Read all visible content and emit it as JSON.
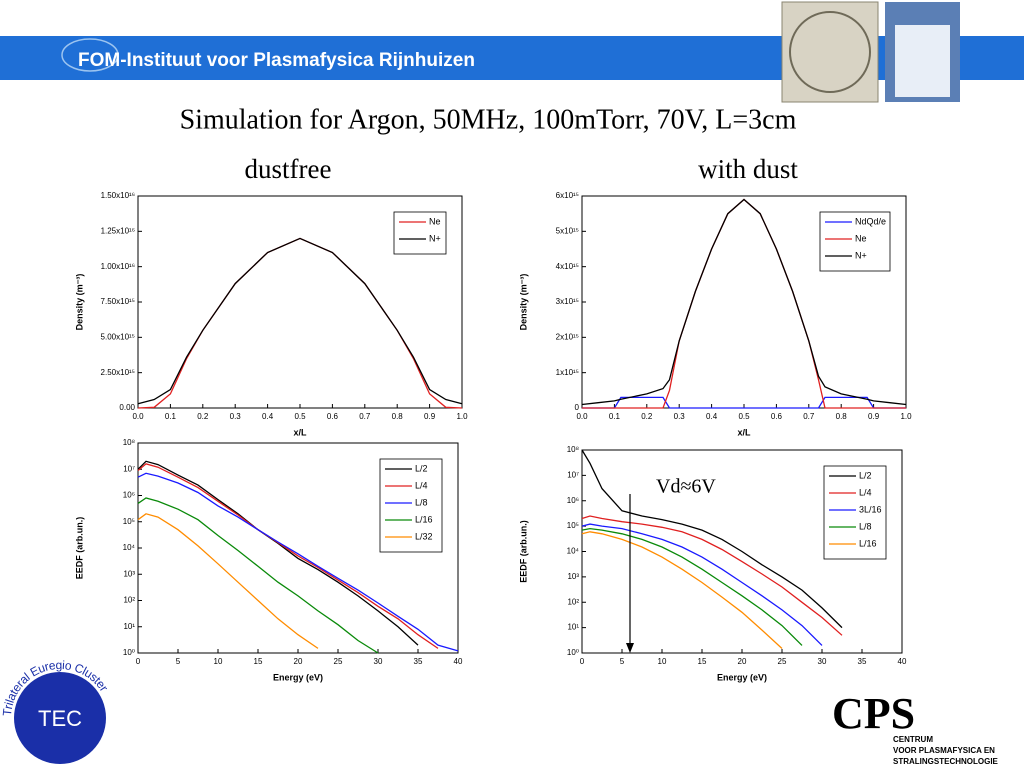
{
  "header": {
    "institute": "FOM-Instituut voor Plasmafysica Rijnhuizen"
  },
  "title": "Simulation for Argon, 50MHz, 100mTorr, 70V, L=3cm",
  "subtitles": [
    "dustfree",
    "with dust"
  ],
  "logos": {
    "tec": "TEC",
    "tec_ring": "Trilateral Euregio Cluster",
    "cps": "CPS",
    "cps_lines": [
      "CENTRUM",
      "VOOR PLASMAFYSICA EN",
      "STRALINGSTECHNOLOGIE"
    ]
  },
  "chart_data": [
    {
      "type": "line",
      "xlabel": "x/L",
      "ylabel": "Density (m⁻³)",
      "x": [
        0,
        0.05,
        0.1,
        0.15,
        0.2,
        0.3,
        0.4,
        0.5,
        0.6,
        0.7,
        0.8,
        0.85,
        0.9,
        0.95,
        1.0
      ],
      "series": [
        {
          "name": "Ne",
          "color": "#e02020",
          "values": [
            0,
            50000000000000.0,
            1000000000000000.0,
            3500000000000000.0,
            5500000000000000.0,
            8800000000000000.0,
            1.1e+16,
            1.2e+16,
            1.1e+16,
            8800000000000000.0,
            5500000000000000.0,
            3500000000000000.0,
            1000000000000000.0,
            50000000000000.0,
            0
          ]
        },
        {
          "name": "N+",
          "color": "#000000",
          "values": [
            300000000000000.0,
            600000000000000.0,
            1300000000000000.0,
            3600000000000000.0,
            5500000000000000.0,
            8800000000000000.0,
            1.1e+16,
            1.2e+16,
            1.1e+16,
            8800000000000000.0,
            5500000000000000.0,
            3600000000000000.0,
            1300000000000000.0,
            600000000000000.0,
            300000000000000.0
          ]
        }
      ],
      "xlim": [
        0,
        1.0
      ],
      "xticks": [
        {
          "value": 0,
          "label": "0.0"
        },
        0.1,
        0.2,
        0.3,
        0.4,
        0.5,
        0.6,
        0.7,
        0.8,
        0.9,
        {
          "value": 1.0,
          "label": "1.0"
        }
      ],
      "ylim": [
        0,
        1.5e+16
      ],
      "yticks": [
        {
          "value": 0,
          "label": "0.00"
        },
        {
          "value": 2500000000000000.0,
          "label": "2.50x10¹⁵"
        },
        {
          "value": 5000000000000000.0,
          "label": "5.00x10¹⁵"
        },
        {
          "value": 7500000000000000.0,
          "label": "7.50x10¹⁵"
        },
        {
          "value": 1e+16,
          "label": "1.00x10¹⁶"
        },
        {
          "value": 1.25e+16,
          "label": "1.25x10¹⁶"
        },
        {
          "value": 1.5e+16,
          "label": "1.50x10¹⁶"
        }
      ],
      "legend": "upper right"
    },
    {
      "type": "line",
      "xlabel": "x/L",
      "ylabel": "Density (m⁻³)",
      "x": [
        0,
        0.05,
        0.1,
        0.12,
        0.2,
        0.25,
        0.27,
        0.3,
        0.35,
        0.4,
        0.45,
        0.5,
        0.55,
        0.6,
        0.65,
        0.7,
        0.73,
        0.75,
        0.8,
        0.88,
        0.9,
        0.95,
        1.0
      ],
      "series": [
        {
          "name": "NdQd/e",
          "color": "#1a1aff",
          "values": [
            0,
            0,
            0,
            300000000000000.0,
            300000000000000.0,
            300000000000000.0,
            0,
            0,
            0,
            0,
            0,
            0,
            0,
            0,
            0,
            0,
            0,
            300000000000000.0,
            300000000000000.0,
            300000000000000.0,
            0,
            0,
            0
          ]
        },
        {
          "name": "Ne",
          "color": "#e02020",
          "values": [
            0,
            0,
            0,
            0,
            0,
            0,
            500000000000000.0,
            1900000000000000.0,
            3300000000000000.0,
            4500000000000000.0,
            5500000000000000.0,
            5900000000000000.0,
            5500000000000000.0,
            4500000000000000.0,
            3300000000000000.0,
            1900000000000000.0,
            800000000000000.0,
            0,
            0,
            0,
            0,
            0,
            0
          ]
        },
        {
          "name": "N+",
          "color": "#000000",
          "values": [
            100000000000000.0,
            150000000000000.0,
            200000000000000.0,
            250000000000000.0,
            400000000000000.0,
            550000000000000.0,
            800000000000000.0,
            1900000000000000.0,
            3300000000000000.0,
            4500000000000000.0,
            5500000000000000.0,
            5900000000000000.0,
            5500000000000000.0,
            4500000000000000.0,
            3300000000000000.0,
            1900000000000000.0,
            900000000000000.0,
            600000000000000.0,
            400000000000000.0,
            250000000000000.0,
            200000000000000.0,
            150000000000000.0,
            100000000000000.0
          ]
        }
      ],
      "xlim": [
        0,
        1.0
      ],
      "xticks": [
        {
          "value": 0,
          "label": "0.0"
        },
        0.1,
        0.2,
        0.3,
        0.4,
        0.5,
        0.6,
        0.7,
        0.8,
        0.9,
        {
          "value": 1.0,
          "label": "1.0"
        }
      ],
      "ylim": [
        0,
        6000000000000000.0
      ],
      "yticks": [
        0,
        {
          "value": 1000000000000000.0,
          "label": "1x10¹⁵"
        },
        {
          "value": 2000000000000000.0,
          "label": "2x10¹⁵"
        },
        {
          "value": 3000000000000000.0,
          "label": "3x10¹⁵"
        },
        {
          "value": 4000000000000000.0,
          "label": "4x10¹⁵"
        },
        {
          "value": 5000000000000000.0,
          "label": "5x10¹⁵"
        },
        {
          "value": 6000000000000000.0,
          "label": "6x10¹⁵"
        }
      ],
      "legend": "upper right"
    },
    {
      "type": "line",
      "xlabel": "Energy (eV)",
      "ylabel": "EEDF (arb.un.)",
      "log_y": true,
      "x": [
        0,
        1,
        2.5,
        5,
        7.5,
        10,
        12.5,
        15,
        17.5,
        20,
        22.5,
        25,
        27.5,
        30,
        32.5,
        35,
        37.5,
        40
      ],
      "series": [
        {
          "name": "L/2",
          "color": "#000000",
          "values": [
            10000000.0,
            20000000.0,
            15000000.0,
            6000000.0,
            2500000.0,
            700000.0,
            200000.0,
            50000.0,
            15000.0,
            4000.0,
            1500.0,
            500,
            150,
            40,
            10,
            2,
            null,
            null
          ]
        },
        {
          "name": "L/4",
          "color": "#e02020",
          "values": [
            9000000.0,
            16000000.0,
            12000000.0,
            5000000.0,
            2000000.0,
            600000.0,
            180000.0,
            50000.0,
            16000.0,
            5000.0,
            1800.0,
            600,
            200,
            60,
            20,
            5,
            1.5,
            null
          ]
        },
        {
          "name": "L/8",
          "color": "#1a1aff",
          "values": [
            5000000.0,
            7000000.0,
            5500000.0,
            3000000.0,
            1300000.0,
            400000.0,
            150000.0,
            50000.0,
            17000.0,
            6000.0,
            2000.0,
            700,
            250,
            80,
            25,
            8,
            2,
            1.2
          ]
        },
        {
          "name": "L/16",
          "color": "#0a8a0a",
          "values": [
            500000.0,
            800000.0,
            600000.0,
            300000.0,
            120000.0,
            30000.0,
            8000.0,
            2000.0,
            500,
            150,
            40,
            12,
            3,
            1,
            null,
            null,
            null,
            null
          ]
        },
        {
          "name": "L/32",
          "color": "#ff8c00",
          "values": [
            120000.0,
            200000.0,
            150000.0,
            50000.0,
            12000.0,
            2500.0,
            500,
            100,
            20,
            5,
            1.5,
            null,
            null,
            null,
            null,
            null,
            null,
            null
          ]
        }
      ],
      "xlim": [
        0,
        40
      ],
      "xticks": [
        0,
        5,
        10,
        15,
        20,
        25,
        30,
        35,
        40
      ],
      "ylim": [
        1,
        100000000.0
      ],
      "yticks": [
        {
          "value": 1,
          "label": "10⁰"
        },
        {
          "value": 10,
          "label": "10¹"
        },
        {
          "value": 100,
          "label": "10²"
        },
        {
          "value": 1000,
          "label": "10³"
        },
        {
          "value": 10000.0,
          "label": "10⁴"
        },
        {
          "value": 100000.0,
          "label": "10⁵"
        },
        {
          "value": 1000000.0,
          "label": "10⁶"
        },
        {
          "value": 10000000.0,
          "label": "10⁷"
        },
        {
          "value": 100000000.0,
          "label": "10⁸"
        }
      ],
      "legend": "upper right"
    },
    {
      "type": "line",
      "xlabel": "Energy (eV)",
      "ylabel": "EEDF (arb.un.)",
      "log_y": true,
      "x": [
        0,
        1,
        2.5,
        5,
        7.5,
        10,
        12.5,
        15,
        17.5,
        20,
        22.5,
        25,
        27.5,
        30,
        32.5,
        35,
        37.5,
        40
      ],
      "series": [
        {
          "name": "L/2",
          "color": "#000000",
          "values": [
            100000000.0,
            30000000.0,
            3000000.0,
            400000.0,
            250000.0,
            180000.0,
            120000.0,
            70000.0,
            30000.0,
            10000.0,
            3000.0,
            1000.0,
            300,
            60,
            10,
            null,
            null,
            null
          ]
        },
        {
          "name": "L/4",
          "color": "#e02020",
          "values": [
            200000.0,
            250000.0,
            200000.0,
            150000.0,
            120000.0,
            90000.0,
            60000.0,
            30000.0,
            12000.0,
            4000.0,
            1300.0,
            400,
            100,
            25,
            5,
            null,
            null,
            null
          ]
        },
        {
          "name": "3L/16",
          "color": "#1a1aff",
          "values": [
            100000.0,
            120000.0,
            100000.0,
            80000.0,
            50000.0,
            30000.0,
            15000.0,
            6000.0,
            2000.0,
            600,
            180,
            50,
            12,
            2,
            null,
            null,
            null,
            null
          ]
        },
        {
          "name": "L/8",
          "color": "#0a8a0a",
          "values": [
            70000.0,
            80000.0,
            70000.0,
            50000.0,
            30000.0,
            15000.0,
            6000.0,
            2000.0,
            600,
            180,
            50,
            12,
            2,
            null,
            null,
            null,
            null,
            null
          ]
        },
        {
          "name": "L/16",
          "color": "#ff8c00",
          "values": [
            50000.0,
            60000.0,
            50000.0,
            30000.0,
            15000.0,
            6000.0,
            2000.0,
            600,
            160,
            40,
            8,
            1.5,
            null,
            null,
            null,
            null,
            null,
            null
          ]
        }
      ],
      "xlim": [
        0,
        40
      ],
      "xticks": [
        0,
        5,
        10,
        15,
        20,
        25,
        30,
        35,
        40
      ],
      "ylim": [
        1,
        100000000.0
      ],
      "yticks": [
        {
          "value": 1,
          "label": "10⁰"
        },
        {
          "value": 10,
          "label": "10¹"
        },
        {
          "value": 100,
          "label": "10²"
        },
        {
          "value": 1000,
          "label": "10³"
        },
        {
          "value": 10000.0,
          "label": "10⁴"
        },
        {
          "value": 100000.0,
          "label": "10⁵"
        },
        {
          "value": 1000000.0,
          "label": "10⁶"
        },
        {
          "value": 10000000.0,
          "label": "10⁷"
        },
        {
          "value": 100000000.0,
          "label": "10⁸"
        }
      ],
      "legend": "upper right",
      "annotation": {
        "text": "Vd≈6V",
        "x": 6
      }
    }
  ]
}
